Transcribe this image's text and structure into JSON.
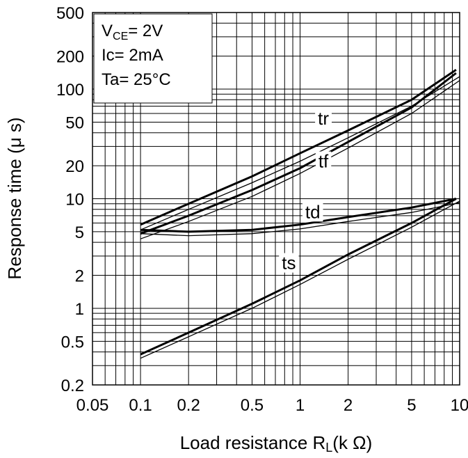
{
  "chart_data": {
    "type": "line",
    "xscale": "log",
    "yscale": "log",
    "xlim": [
      0.05,
      10
    ],
    "ylim": [
      0.2,
      500
    ],
    "xlabel_main": "Load resistance R",
    "xlabel_sub": "L",
    "xlabel_unit": "(k Ω)",
    "ylabel": "Response time (μ s)",
    "xticks": [
      {
        "v": 0.05,
        "t": "0.05"
      },
      {
        "v": 0.1,
        "t": "0.1"
      },
      {
        "v": 0.2,
        "t": "0.2"
      },
      {
        "v": 0.5,
        "t": "0.5"
      },
      {
        "v": 1,
        "t": "1"
      },
      {
        "v": 2,
        "t": "2"
      },
      {
        "v": 5,
        "t": "5"
      },
      {
        "v": 10,
        "t": "10"
      }
    ],
    "yticks": [
      {
        "v": 500,
        "t": "500"
      },
      {
        "v": 200,
        "t": "200"
      },
      {
        "v": 100,
        "t": "100"
      },
      {
        "v": 50,
        "t": "50"
      },
      {
        "v": 20,
        "t": "20"
      },
      {
        "v": 10,
        "t": "10"
      },
      {
        "v": 5,
        "t": "5"
      },
      {
        "v": 2,
        "t": "2"
      },
      {
        "v": 1,
        "t": "1"
      },
      {
        "v": 0.5,
        "t": "0.5"
      },
      {
        "v": 0.2,
        "t": "0.2"
      }
    ],
    "grid": true,
    "conditions": {
      "vce_main": "V",
      "vce_sub": "CE",
      "vce_value": "= 2V",
      "ic": "Ic= 2mA",
      "ta": "Ta= 25°C"
    },
    "series": [
      {
        "name": "tr",
        "x": [
          0.1,
          0.2,
          0.5,
          1,
          2,
          5,
          9.5
        ],
        "values": [
          5.8,
          9,
          16,
          26,
          42,
          80,
          150
        ]
      },
      {
        "name": "tr",
        "x": [
          0.1,
          0.2,
          0.5,
          1,
          2,
          5,
          10
        ],
        "values": [
          5.2,
          8,
          14,
          22,
          36,
          70,
          130
        ]
      },
      {
        "name": "tf",
        "x": [
          0.1,
          0.2,
          0.5,
          1,
          2,
          5,
          9.5
        ],
        "values": [
          4.8,
          7,
          12,
          19,
          33,
          68,
          140
        ]
      },
      {
        "name": "tf",
        "x": [
          0.1,
          0.2,
          0.5,
          1,
          2,
          5,
          10
        ],
        "values": [
          4.3,
          6.2,
          10.5,
          17,
          29,
          60,
          120
        ]
      },
      {
        "name": "td",
        "x": [
          0.1,
          0.2,
          0.5,
          1,
          2,
          5,
          9.5
        ],
        "values": [
          5.2,
          5.0,
          5.2,
          5.8,
          6.8,
          8.3,
          10
        ]
      },
      {
        "name": "td",
        "x": [
          0.1,
          0.2,
          0.5,
          1,
          2,
          5,
          10
        ],
        "values": [
          4.8,
          4.6,
          4.8,
          5.3,
          6.2,
          7.5,
          9.2
        ]
      },
      {
        "name": "ts",
        "x": [
          0.1,
          0.2,
          0.5,
          1,
          2,
          5,
          9.5
        ],
        "values": [
          0.38,
          0.6,
          1.1,
          1.8,
          3.1,
          6,
          10
        ]
      },
      {
        "name": "ts",
        "x": [
          0.1,
          0.2,
          0.5,
          1,
          2,
          5,
          10
        ],
        "values": [
          0.35,
          0.55,
          1.0,
          1.65,
          2.8,
          5.5,
          9.5
        ]
      }
    ],
    "bold_series": [
      0,
      2,
      4,
      6
    ],
    "curve_labels": [
      {
        "text": "tr",
        "x": 1.4,
        "y": 54
      },
      {
        "text": "tf",
        "x": 1.4,
        "y": 22
      },
      {
        "text": "td",
        "x": 1.2,
        "y": 7.6
      },
      {
        "text": "ts",
        "x": 0.85,
        "y": 2.6
      }
    ]
  }
}
